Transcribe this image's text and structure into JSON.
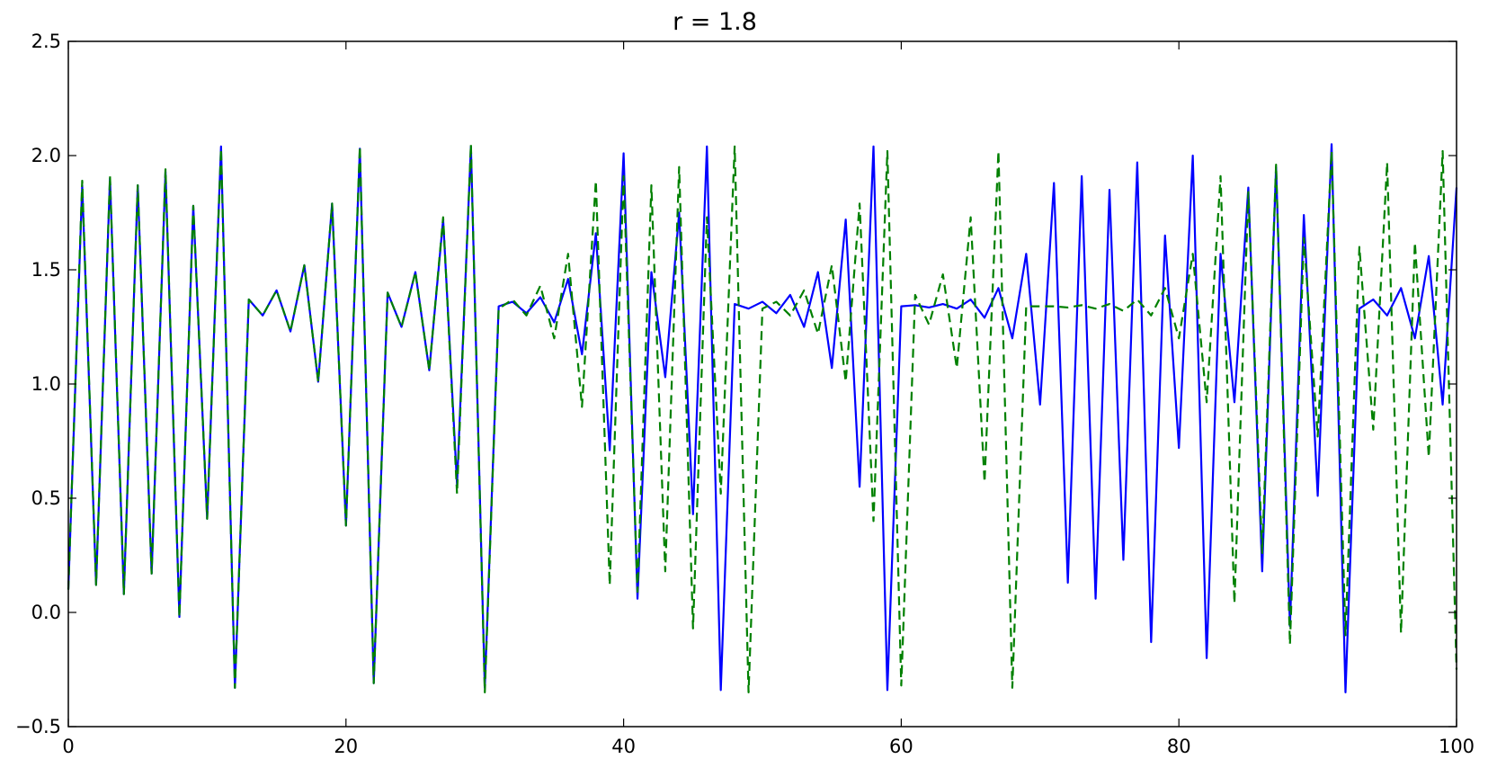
{
  "chart_data": {
    "type": "line",
    "title": "r = 1.8",
    "xlabel": "",
    "ylabel": "",
    "xlim": [
      0,
      100
    ],
    "ylim": [
      -0.5,
      2.5
    ],
    "grid": false,
    "xticks": [
      0,
      20,
      40,
      60,
      80,
      100
    ],
    "xtick_labels": [
      "0",
      "20",
      "40",
      "60",
      "80",
      "100"
    ],
    "yticks": [
      -0.5,
      0.0,
      0.5,
      1.0,
      1.5,
      2.0,
      2.5
    ],
    "ytick_labels": [
      "−0.5",
      "0.0",
      "0.5",
      "1.0",
      "1.5",
      "2.0",
      "2.5"
    ],
    "x": [
      0,
      1,
      2,
      3,
      4,
      5,
      6,
      7,
      8,
      9,
      10,
      11,
      12,
      13,
      14,
      15,
      16,
      17,
      18,
      19,
      20,
      21,
      22,
      23,
      24,
      25,
      26,
      27,
      28,
      29,
      30,
      31,
      32,
      33,
      34,
      35,
      36,
      37,
      38,
      39,
      40,
      41,
      42,
      43,
      44,
      45,
      46,
      47,
      48,
      49,
      50,
      51,
      52,
      53,
      54,
      55,
      56,
      57,
      58,
      59,
      60,
      61,
      62,
      63,
      64,
      65,
      66,
      67,
      68,
      69,
      70,
      71,
      72,
      73,
      74,
      75,
      76,
      77,
      78,
      79,
      80,
      81,
      82,
      83,
      84,
      85,
      86,
      87,
      88,
      89,
      90,
      91,
      92,
      93,
      94,
      95,
      96,
      97,
      98,
      99,
      100
    ],
    "series": [
      {
        "color": "#0000ff",
        "style": "solid",
        "values": [
          0.1,
          1.87,
          0.12,
          1.9,
          0.08,
          1.87,
          0.17,
          1.93,
          -0.02,
          1.78,
          0.41,
          2.04,
          -0.33,
          1.37,
          1.3,
          1.41,
          1.23,
          1.52,
          1.01,
          1.79,
          0.38,
          2.03,
          -0.31,
          1.4,
          1.25,
          1.49,
          1.06,
          1.72,
          0.56,
          2.04,
          -0.33,
          1.34,
          1.36,
          1.31,
          1.38,
          1.27,
          1.46,
          1.13,
          1.66,
          0.71,
          2.01,
          0.06,
          1.49,
          1.03,
          1.75,
          0.43,
          2.04,
          -0.34,
          1.35,
          1.33,
          1.36,
          1.31,
          1.39,
          1.25,
          1.49,
          1.07,
          1.72,
          0.55,
          2.04,
          -0.34,
          1.34,
          1.345,
          1.335,
          1.35,
          1.33,
          1.37,
          1.29,
          1.42,
          1.2,
          1.57,
          0.91,
          1.88,
          0.13,
          1.91,
          0.06,
          1.85,
          0.23,
          1.97,
          -0.13,
          1.65,
          0.72,
          2.0,
          -0.2,
          1.57,
          0.92,
          1.86,
          0.18,
          1.95,
          -0.06,
          1.74,
          0.51,
          2.05,
          -0.35,
          1.33,
          1.37,
          1.3,
          1.42,
          1.2,
          1.56,
          0.91,
          1.86
        ]
      },
      {
        "color": "#008000",
        "style": "dashed",
        "values": [
          0.1,
          1.89,
          0.12,
          1.91,
          0.08,
          1.87,
          0.17,
          1.94,
          -0.02,
          1.78,
          0.41,
          2.03,
          -0.33,
          1.37,
          1.3,
          1.41,
          1.23,
          1.52,
          1.01,
          1.79,
          0.38,
          2.04,
          -0.31,
          1.4,
          1.25,
          1.49,
          1.06,
          1.73,
          0.52,
          2.05,
          -0.35,
          1.33,
          1.37,
          1.3,
          1.43,
          1.2,
          1.57,
          0.9,
          1.89,
          0.12,
          1.91,
          0.09,
          1.87,
          0.18,
          1.95,
          -0.07,
          1.73,
          0.52,
          2.04,
          -0.35,
          1.33,
          1.36,
          1.3,
          1.41,
          1.22,
          1.52,
          1.01,
          1.79,
          0.4,
          2.02,
          -0.32,
          1.39,
          1.26,
          1.48,
          1.07,
          1.73,
          0.57,
          2.02,
          -0.33,
          1.34,
          1.34,
          1.34,
          1.335,
          1.345,
          1.33,
          1.35,
          1.32,
          1.37,
          1.3,
          1.42,
          1.2,
          1.57,
          0.92,
          1.91,
          0.04,
          1.84,
          0.26,
          1.96,
          -0.14,
          1.64,
          0.77,
          2.02,
          -0.1,
          1.6,
          0.8,
          1.97,
          -0.09,
          1.62,
          0.68,
          2.02,
          -0.25
        ]
      }
    ]
  }
}
